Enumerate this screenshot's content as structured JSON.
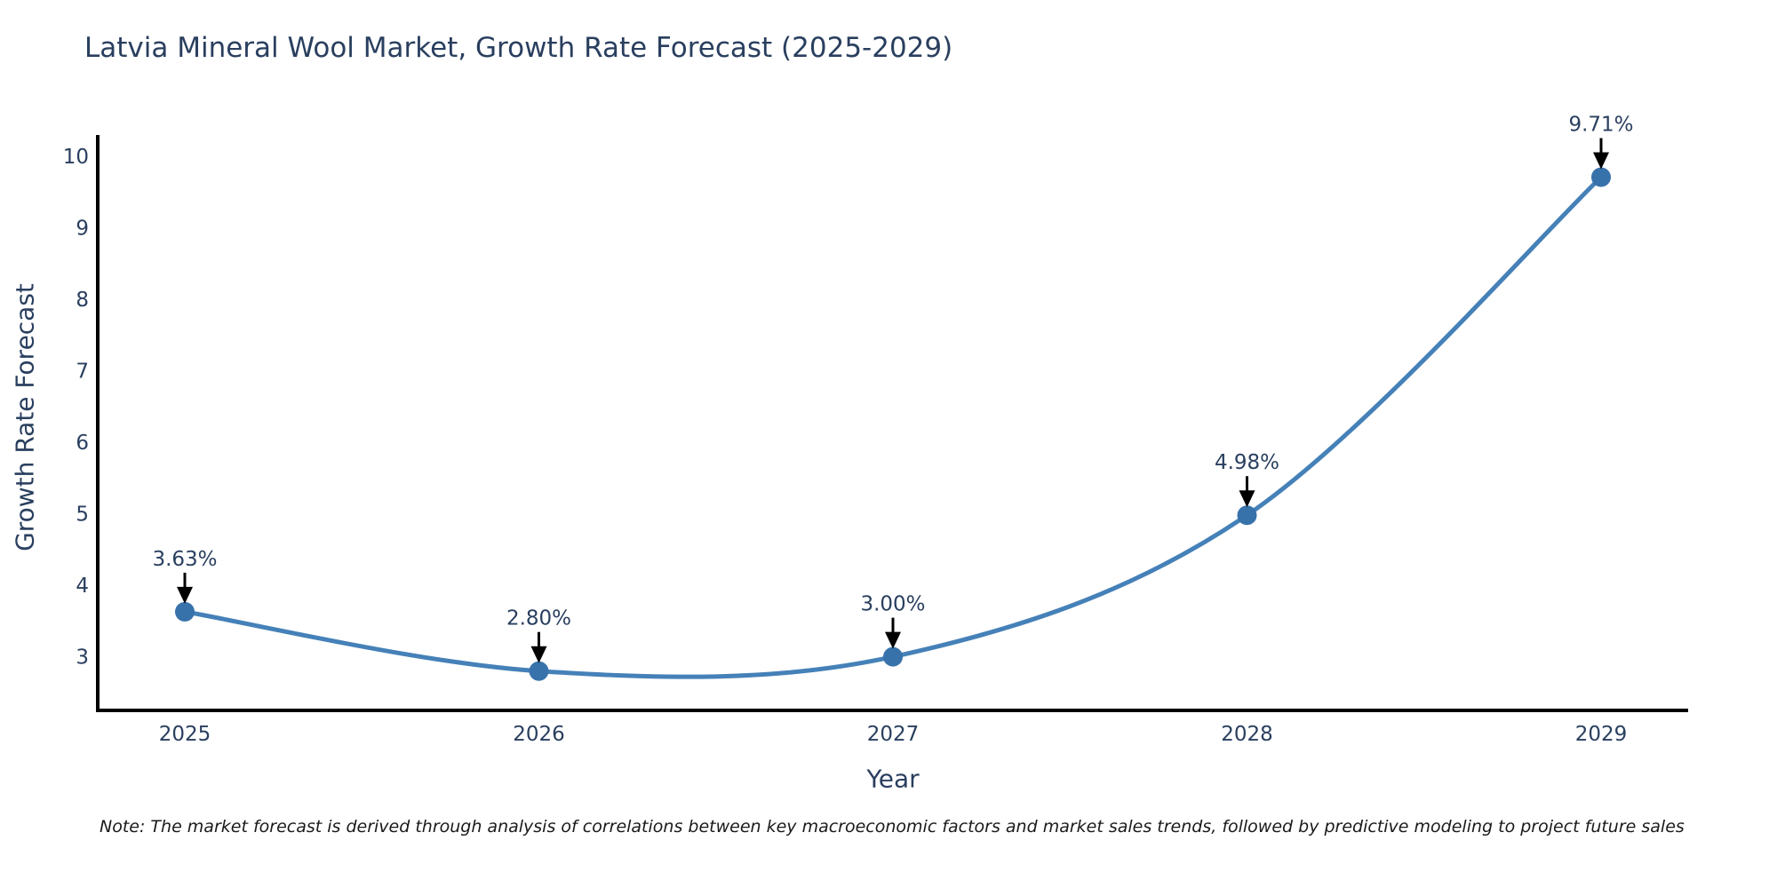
{
  "title": "Latvia Mineral Wool Market, Growth Rate Forecast (2025-2029)",
  "note": "Note: The market forecast is derived through analysis of correlations between key macroeconomic factors and market sales trends, followed by predictive modeling to project future sales",
  "chart_data": {
    "type": "line",
    "title": "Latvia Mineral Wool Market, Growth Rate Forecast (2025-2029)",
    "xlabel": "Year",
    "ylabel": "Growth Rate Forecast",
    "categories": [
      "2025",
      "2026",
      "2027",
      "2028",
      "2029"
    ],
    "values": [
      3.63,
      2.8,
      3.0,
      4.98,
      9.71
    ],
    "point_labels": [
      "3.63%",
      "2.80%",
      "3.00%",
      "4.98%",
      "9.71%"
    ],
    "yticks": [
      3,
      4,
      5,
      6,
      7,
      8,
      9,
      10
    ],
    "ylim": [
      2.25,
      10.3
    ],
    "line_shape": "spline",
    "grid": false,
    "legend": "none",
    "colors": {
      "line": "#4581b8",
      "marker": "#3872ab",
      "axis": "#000000",
      "text": "#2a3f5f",
      "annotation_arrow": "#000000"
    }
  }
}
